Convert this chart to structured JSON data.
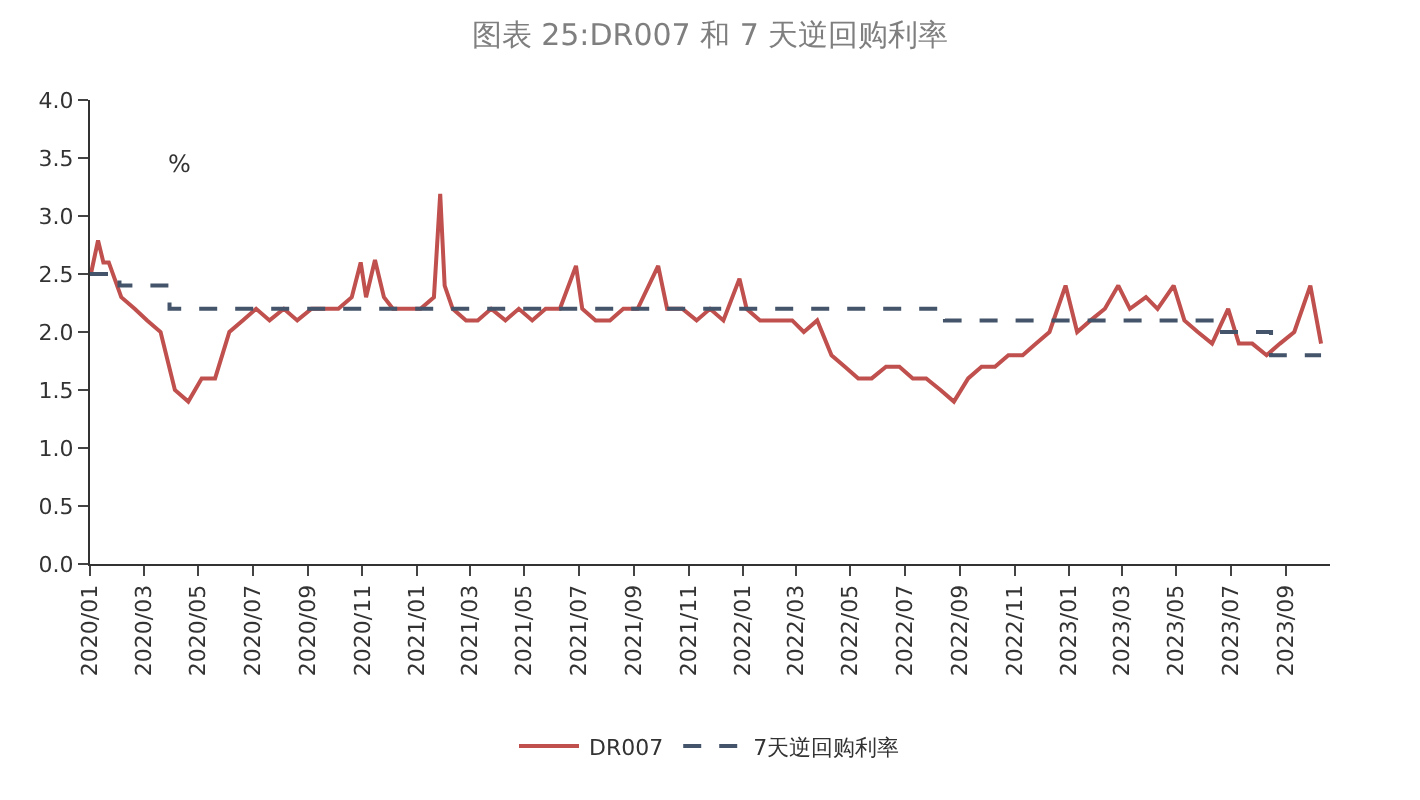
{
  "chart_data": {
    "type": "line",
    "title": "图表 25:DR007 和 7 天逆回购利率",
    "ylabel": "%",
    "xlim": [
      "2020-01-01",
      "2023-10-20"
    ],
    "ylim": [
      0,
      4
    ],
    "yticks": [
      {
        "value": 0,
        "label": "0.0"
      },
      {
        "value": 0.5,
        "label": "0.5"
      },
      {
        "value": 1,
        "label": "1.0"
      },
      {
        "value": 1.5,
        "label": "1.5"
      },
      {
        "value": 2,
        "label": "2.0"
      },
      {
        "value": 2.5,
        "label": "2.5"
      },
      {
        "value": 3,
        "label": "3.0"
      },
      {
        "value": 3.5,
        "label": "3.5"
      },
      {
        "value": 4,
        "label": "4.0"
      }
    ],
    "xticks": [
      {
        "value": "2020-01",
        "label": "2020/01"
      },
      {
        "value": "2020-03",
        "label": "2020/03"
      },
      {
        "value": "2020-05",
        "label": "2020/05"
      },
      {
        "value": "2020-07",
        "label": "2020/07"
      },
      {
        "value": "2020-09",
        "label": "2020/09"
      },
      {
        "value": "2020-11",
        "label": "2020/11"
      },
      {
        "value": "2021-01",
        "label": "2021/01"
      },
      {
        "value": "2021-03",
        "label": "2021/03"
      },
      {
        "value": "2021-05",
        "label": "2021/05"
      },
      {
        "value": "2021-07",
        "label": "2021/07"
      },
      {
        "value": "2021-09",
        "label": "2021/09"
      },
      {
        "value": "2021-11",
        "label": "2021/11"
      },
      {
        "value": "2022-01",
        "label": "2022/01"
      },
      {
        "value": "2022-03",
        "label": "2022/03"
      },
      {
        "value": "2022-05",
        "label": "2022/05"
      },
      {
        "value": "2022-07",
        "label": "2022/07"
      },
      {
        "value": "2022-09",
        "label": "2022/09"
      },
      {
        "value": "2022-11",
        "label": "2022/11"
      },
      {
        "value": "2023-01",
        "label": "2023/01"
      },
      {
        "value": "2023-03",
        "label": "2023/03"
      },
      {
        "value": "2023-05",
        "label": "2023/05"
      },
      {
        "value": "2023-07",
        "label": "2023/07"
      },
      {
        "value": "2023-09",
        "label": "2023/09"
      }
    ],
    "legend": "bottom",
    "marker": "none",
    "series": [
      {
        "name": "DR007",
        "color": "#c0504d",
        "line_style": "solid",
        "x": [
          "2020-01-02",
          "2020-01-10",
          "2020-01-16",
          "2020-01-22",
          "2020-02-05",
          "2020-02-20",
          "2020-03-05",
          "2020-03-20",
          "2020-04-05",
          "2020-04-20",
          "2020-05-05",
          "2020-05-20",
          "2020-06-05",
          "2020-06-20",
          "2020-07-05",
          "2020-07-20",
          "2020-08-05",
          "2020-08-20",
          "2020-09-05",
          "2020-09-20",
          "2020-10-05",
          "2020-10-20",
          "2020-10-30",
          "2020-11-05",
          "2020-11-15",
          "2020-11-25",
          "2020-12-05",
          "2020-12-20",
          "2021-01-05",
          "2021-01-20",
          "2021-01-27",
          "2021-02-01",
          "2021-02-10",
          "2021-02-25",
          "2021-03-10",
          "2021-03-25",
          "2021-04-10",
          "2021-04-25",
          "2021-05-10",
          "2021-05-25",
          "2021-06-10",
          "2021-06-28",
          "2021-07-05",
          "2021-07-20",
          "2021-08-05",
          "2021-08-20",
          "2021-09-05",
          "2021-09-28",
          "2021-10-08",
          "2021-10-25",
          "2021-11-10",
          "2021-11-25",
          "2021-12-10",
          "2021-12-28",
          "2022-01-05",
          "2022-01-20",
          "2022-02-10",
          "2022-02-25",
          "2022-03-10",
          "2022-03-25",
          "2022-04-10",
          "2022-04-25",
          "2022-05-10",
          "2022-05-25",
          "2022-06-10",
          "2022-06-25",
          "2022-07-10",
          "2022-07-25",
          "2022-08-10",
          "2022-08-25",
          "2022-09-10",
          "2022-09-25",
          "2022-10-10",
          "2022-10-25",
          "2022-11-10",
          "2022-11-25",
          "2022-12-10",
          "2022-12-28",
          "2023-01-10",
          "2023-01-25",
          "2023-02-10",
          "2023-02-25",
          "2023-03-10",
          "2023-03-28",
          "2023-04-10",
          "2023-04-28",
          "2023-05-10",
          "2023-05-25",
          "2023-06-10",
          "2023-06-28",
          "2023-07-10",
          "2023-07-25",
          "2023-08-10",
          "2023-08-25",
          "2023-09-10",
          "2023-09-28",
          "2023-10-10"
        ],
        "values": [
          2.5,
          2.79,
          2.6,
          2.6,
          2.3,
          2.2,
          2.1,
          2.0,
          1.5,
          1.4,
          1.6,
          1.6,
          2.0,
          2.1,
          2.2,
          2.1,
          2.2,
          2.1,
          2.2,
          2.2,
          2.2,
          2.3,
          2.6,
          2.3,
          2.62,
          2.3,
          2.2,
          2.2,
          2.2,
          2.3,
          3.19,
          2.4,
          2.2,
          2.1,
          2.1,
          2.2,
          2.1,
          2.2,
          2.1,
          2.2,
          2.2,
          2.57,
          2.2,
          2.1,
          2.1,
          2.2,
          2.2,
          2.57,
          2.2,
          2.2,
          2.1,
          2.2,
          2.1,
          2.46,
          2.2,
          2.1,
          2.1,
          2.1,
          2.0,
          2.1,
          1.8,
          1.7,
          1.6,
          1.6,
          1.7,
          1.7,
          1.6,
          1.6,
          1.5,
          1.4,
          1.6,
          1.7,
          1.7,
          1.8,
          1.8,
          1.9,
          2.0,
          2.4,
          2.0,
          2.1,
          2.2,
          2.4,
          2.2,
          2.3,
          2.2,
          2.4,
          2.1,
          2.0,
          1.9,
          2.2,
          1.9,
          1.9,
          1.8,
          1.9,
          2.0,
          2.4,
          1.9
        ]
      },
      {
        "name": "7天逆回购利率",
        "color": "#44546a",
        "type": "step",
        "line_style": "dashed",
        "x": [
          "2020-01-01",
          "2020-02-03",
          "2020-03-30",
          "2022-08-15",
          "2023-06-13",
          "2023-08-15",
          "2023-10-10"
        ],
        "values": [
          2.5,
          2.4,
          2.2,
          2.1,
          2.0,
          1.8,
          1.8
        ]
      }
    ]
  }
}
